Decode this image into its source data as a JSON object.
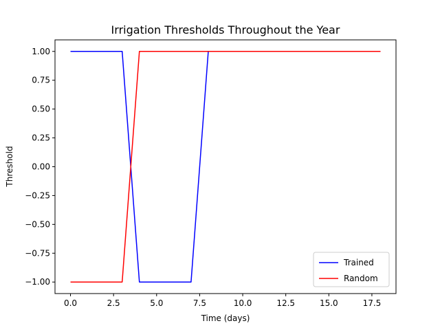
{
  "chart_data": {
    "type": "line",
    "title": "Irrigation Thresholds Throughout the Year",
    "xlabel": "Time (days)",
    "ylabel": "Threshold",
    "xlim": [
      -0.9,
      18.9
    ],
    "ylim": [
      -1.1,
      1.1
    ],
    "x_ticks": [
      0.0,
      2.5,
      5.0,
      7.5,
      10.0,
      12.5,
      15.0,
      17.5
    ],
    "x_tick_labels": [
      "0.0",
      "2.5",
      "5.0",
      "7.5",
      "10.0",
      "12.5",
      "15.0",
      "17.5"
    ],
    "y_ticks": [
      -1.0,
      -0.75,
      -0.5,
      -0.25,
      0.0,
      0.25,
      0.5,
      0.75,
      1.0
    ],
    "y_tick_labels": [
      "−1.00",
      "−0.75",
      "−0.50",
      "−0.25",
      "0.00",
      "0.25",
      "0.50",
      "0.75",
      "1.00"
    ],
    "x": [
      0,
      1,
      2,
      3,
      4,
      5,
      6,
      7,
      8,
      9,
      10,
      11,
      12,
      13,
      14,
      15,
      16,
      17,
      18
    ],
    "series": [
      {
        "name": "Trained",
        "color": "#0000ff",
        "values": [
          1,
          1,
          1,
          1,
          -1,
          -1,
          -1,
          -1,
          1,
          1,
          1,
          1,
          1,
          1,
          1,
          1,
          1,
          1,
          1
        ]
      },
      {
        "name": "Random",
        "color": "#ff0000",
        "values": [
          -1,
          -1,
          -1,
          -1,
          1,
          1,
          1,
          1,
          1,
          1,
          1,
          1,
          1,
          1,
          1,
          1,
          1,
          1,
          1
        ]
      }
    ],
    "legend_position": "lower-right",
    "grid": false
  }
}
